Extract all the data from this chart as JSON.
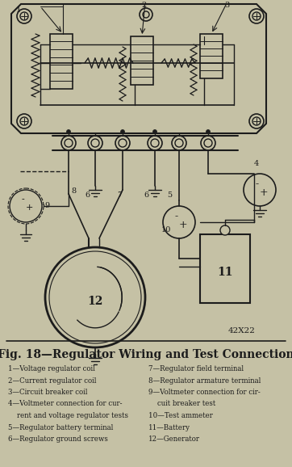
{
  "title": "Fig. 18—Regulator Wiring and Test Connection",
  "figure_code": "42X22",
  "bg_color": "#c5c1a5",
  "line_color": "#1c1c1c",
  "legend_left": [
    "1—Voltage regulator coil",
    "2—Current regulator coil",
    "3—Circuit breaker coil",
    "4—Voltmeter connection for cur-",
    "    rent and voltage regulator tests",
    "5—Regulator battery terminal",
    "6—Regulator ground screws"
  ],
  "legend_right": [
    "7—Regulator field terminal",
    "8—Regulator armature terminal",
    "9—Voltmeter connection for cir-",
    "    cuit breaker test",
    "10—Test ammeter",
    "11—Battery",
    "12—Generator"
  ],
  "diagram_region": [
    0,
    0,
    362,
    410
  ],
  "caption_region": [
    0,
    410,
    362,
    578
  ]
}
